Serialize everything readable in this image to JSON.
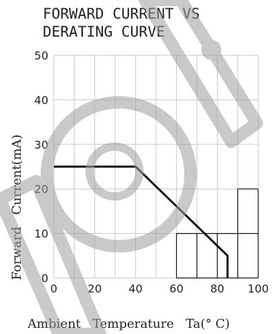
{
  "chart_data": {
    "type": "line",
    "title": [
      "FORWARD CURRENT VS",
      "DERATING CURVE"
    ],
    "xlabel": "Ambient   Temperature   Ta(° C)",
    "ylabel": "Forward   Current(mA)",
    "xlim": [
      0,
      100
    ],
    "ylim": [
      0,
      50
    ],
    "x_ticks": [
      "0",
      "20",
      "40",
      "60",
      "80",
      "100"
    ],
    "y_ticks": [
      "0",
      "10",
      "20",
      "30",
      "40",
      "50"
    ],
    "grid": true,
    "series": [
      {
        "x": [
          0,
          40,
          85,
          85
        ],
        "y": [
          25,
          25,
          5,
          0
        ]
      }
    ],
    "colors": {
      "line": "#111111",
      "grid": "#c8c8c8",
      "text": "#222222",
      "watermark": "#9e9e9e"
    }
  }
}
